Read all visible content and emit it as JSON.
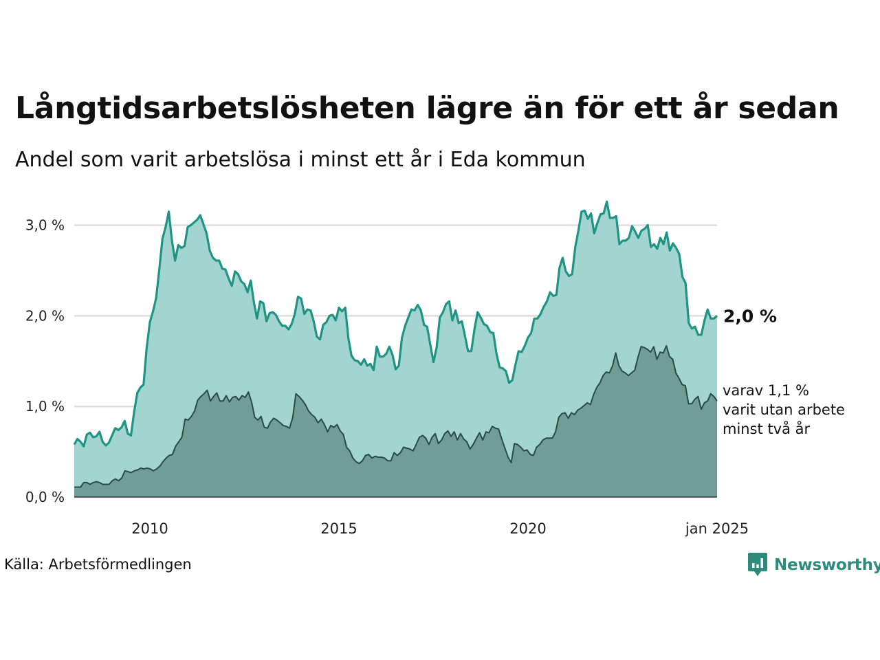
{
  "title": "Långtidsarbetslösheten lägre än för ett år sedan",
  "subtitle": "Andel som varit arbetslösa i minst ett år i Eda kommun",
  "source": "Källa: Arbetsförmedlingen",
  "brand": "Newsworthy",
  "colors": {
    "main_line": "#1f9484",
    "main_fill": "#a3d5d0",
    "sub_line": "#2a4a45",
    "sub_fill": "#719d97",
    "grid": "#dddddd",
    "brand": "#2f8a7e"
  },
  "chart_data": {
    "type": "area",
    "title": "Långtidsarbetslösheten lägre än för ett år sedan",
    "subtitle": "Andel som varit arbetslösa i minst ett år i Eda kommun",
    "x_start": "2008-01",
    "x_end": "2025-01",
    "frequency": "monthly",
    "xlim": [
      2008.0,
      2025.0
    ],
    "ylim": [
      0,
      3.3
    ],
    "y_ticks": [
      {
        "value": 0,
        "label": "0,0 %"
      },
      {
        "value": 1,
        "label": "1,0 %"
      },
      {
        "value": 2,
        "label": "2,0 %"
      },
      {
        "value": 3,
        "label": "3,0 %"
      }
    ],
    "x_ticks": [
      {
        "value": 2010,
        "label": "2010"
      },
      {
        "value": 2015,
        "label": "2015"
      },
      {
        "value": 2020,
        "label": "2020"
      },
      {
        "value": 2025,
        "label": "jan 2025"
      }
    ],
    "grid": true,
    "series": [
      {
        "name": "Minst ett år",
        "end_label": "2,0 %",
        "values": [
          0.58,
          0.64,
          0.61,
          0.56,
          0.69,
          0.71,
          0.66,
          0.67,
          0.72,
          0.61,
          0.57,
          0.6,
          0.68,
          0.76,
          0.74,
          0.77,
          0.84,
          0.7,
          0.68,
          0.94,
          1.15,
          1.21,
          1.24,
          1.65,
          1.93,
          2.05,
          2.2,
          2.52,
          2.85,
          2.98,
          3.15,
          2.83,
          2.61,
          2.78,
          2.75,
          2.77,
          2.98,
          3.0,
          3.03,
          3.06,
          3.11,
          3.01,
          2.91,
          2.72,
          2.64,
          2.61,
          2.61,
          2.52,
          2.51,
          2.41,
          2.33,
          2.49,
          2.46,
          2.38,
          2.35,
          2.26,
          2.39,
          2.15,
          1.97,
          2.16,
          2.14,
          1.94,
          2.03,
          2.04,
          2.01,
          1.94,
          1.89,
          1.89,
          1.85,
          1.91,
          2.02,
          2.21,
          2.19,
          2.02,
          2.07,
          2.06,
          1.94,
          1.77,
          1.74,
          1.9,
          1.93,
          2.0,
          2.01,
          1.95,
          2.09,
          2.05,
          2.09,
          1.75,
          1.56,
          1.51,
          1.5,
          1.46,
          1.52,
          1.45,
          1.47,
          1.4,
          1.66,
          1.55,
          1.55,
          1.58,
          1.66,
          1.57,
          1.41,
          1.45,
          1.76,
          1.89,
          1.98,
          2.07,
          2.06,
          2.12,
          2.06,
          1.9,
          1.88,
          1.68,
          1.49,
          1.65,
          1.98,
          2.04,
          2.13,
          2.16,
          1.95,
          2.06,
          1.92,
          1.94,
          1.78,
          1.61,
          1.61,
          1.85,
          2.04,
          1.98,
          1.91,
          1.89,
          1.82,
          1.81,
          1.58,
          1.43,
          1.42,
          1.39,
          1.26,
          1.29,
          1.46,
          1.61,
          1.6,
          1.67,
          1.76,
          1.81,
          1.97,
          1.97,
          2.02,
          2.1,
          2.16,
          2.26,
          2.22,
          2.23,
          2.53,
          2.64,
          2.49,
          2.44,
          2.46,
          2.76,
          2.94,
          3.15,
          3.16,
          3.07,
          3.13,
          2.91,
          3.02,
          3.12,
          3.13,
          3.26,
          3.08,
          3.08,
          3.1,
          2.79,
          2.83,
          2.83,
          2.86,
          2.99,
          2.93,
          2.86,
          2.94,
          2.96,
          3.0,
          2.76,
          2.79,
          2.74,
          2.86,
          2.79,
          2.92,
          2.72,
          2.8,
          2.75,
          2.68,
          2.43,
          2.36,
          1.92,
          1.86,
          1.88,
          1.79,
          1.79,
          1.95,
          2.07,
          1.97,
          1.97,
          2.0
        ]
      },
      {
        "name": "varav minst två år",
        "end_label_lines": [
          "varav 1,1 %",
          "varit utan arbete",
          "minst två år"
        ],
        "values": [
          0.11,
          0.11,
          0.11,
          0.16,
          0.16,
          0.14,
          0.16,
          0.17,
          0.16,
          0.14,
          0.14,
          0.14,
          0.18,
          0.2,
          0.18,
          0.21,
          0.29,
          0.28,
          0.27,
          0.29,
          0.3,
          0.32,
          0.31,
          0.32,
          0.31,
          0.29,
          0.31,
          0.34,
          0.39,
          0.43,
          0.46,
          0.47,
          0.56,
          0.61,
          0.66,
          0.86,
          0.85,
          0.89,
          0.95,
          1.07,
          1.11,
          1.14,
          1.18,
          1.06,
          1.11,
          1.15,
          1.06,
          1.06,
          1.12,
          1.05,
          1.1,
          1.11,
          1.07,
          1.12,
          1.1,
          1.16,
          1.05,
          0.88,
          0.85,
          0.89,
          0.77,
          0.76,
          0.83,
          0.87,
          0.85,
          0.82,
          0.79,
          0.78,
          0.76,
          0.88,
          1.14,
          1.11,
          1.07,
          1.02,
          0.95,
          0.91,
          0.88,
          0.82,
          0.86,
          0.8,
          0.72,
          0.79,
          0.77,
          0.8,
          0.73,
          0.69,
          0.55,
          0.51,
          0.43,
          0.39,
          0.37,
          0.4,
          0.46,
          0.47,
          0.43,
          0.45,
          0.44,
          0.44,
          0.43,
          0.4,
          0.4,
          0.49,
          0.46,
          0.49,
          0.55,
          0.54,
          0.53,
          0.51,
          0.58,
          0.66,
          0.68,
          0.65,
          0.58,
          0.66,
          0.7,
          0.59,
          0.63,
          0.7,
          0.73,
          0.67,
          0.72,
          0.63,
          0.7,
          0.64,
          0.61,
          0.53,
          0.58,
          0.65,
          0.71,
          0.63,
          0.72,
          0.71,
          0.78,
          0.76,
          0.75,
          0.64,
          0.54,
          0.44,
          0.38,
          0.59,
          0.58,
          0.55,
          0.51,
          0.52,
          0.47,
          0.46,
          0.55,
          0.58,
          0.63,
          0.65,
          0.65,
          0.65,
          0.72,
          0.88,
          0.92,
          0.93,
          0.87,
          0.93,
          0.91,
          0.96,
          0.98,
          1.01,
          1.04,
          1.02,
          1.13,
          1.21,
          1.26,
          1.34,
          1.38,
          1.37,
          1.45,
          1.59,
          1.45,
          1.39,
          1.37,
          1.34,
          1.37,
          1.4,
          1.54,
          1.66,
          1.65,
          1.63,
          1.6,
          1.66,
          1.52,
          1.6,
          1.59,
          1.67,
          1.55,
          1.52,
          1.37,
          1.31,
          1.24,
          1.23,
          1.03,
          1.03,
          1.08,
          1.11,
          0.97,
          1.04,
          1.06,
          1.14,
          1.11,
          1.06
        ]
      }
    ]
  }
}
